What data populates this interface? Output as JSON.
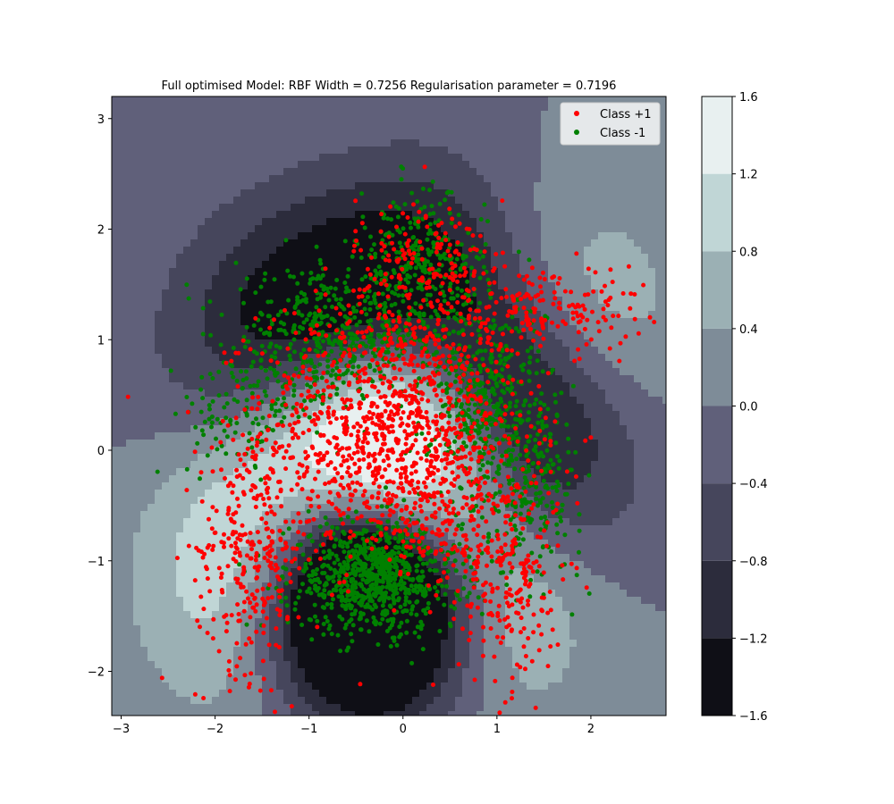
{
  "chart_data": {
    "type": "scatter",
    "title": "Full optimised Model: RBF Width = 0.7256  Regularisation parameter = 0.7196",
    "xlabel": "",
    "ylabel": "",
    "xlim": [
      -3.1,
      2.8
    ],
    "ylim": [
      -2.4,
      3.2
    ],
    "x_ticks": [
      -3,
      -2,
      -1,
      0,
      1,
      2
    ],
    "y_ticks": [
      -2,
      -1,
      0,
      1,
      2,
      3
    ],
    "legend": {
      "placement": "top-right",
      "entries": [
        "Class +1",
        "Class -1"
      ]
    },
    "colorbar": {
      "ticks": [
        -1.6,
        -1.2,
        -0.8,
        -0.4,
        0.0,
        0.4,
        0.8,
        1.2,
        1.6
      ],
      "tick_labels": [
        "−1.6",
        "−1.2",
        "−0.8",
        "−0.4",
        "0.0",
        "0.4",
        "0.8",
        "1.2",
        "1.6"
      ],
      "levels": [
        -1.6,
        -1.2,
        -0.8,
        -0.4,
        0.0,
        0.4,
        0.8,
        1.2,
        1.6
      ],
      "colors": [
        "#0f0f16",
        "#2c2c3c",
        "#46465c",
        "#60607a",
        "#7e8c98",
        "#9bb0b4",
        "#c0d6d6",
        "#e8f0f0"
      ]
    },
    "decision_surface": {
      "kind": "rbf_contour",
      "level_colors": [
        "#0f0f16",
        "#2c2c3c",
        "#46465c",
        "#60607a",
        "#7e8c98",
        "#9bb0b4",
        "#c0d6d6",
        "#e8f0f0"
      ]
    },
    "series": [
      {
        "name": "Class +1",
        "color": "#ff0000",
        "clusters": [
          {
            "cx": -0.1,
            "cy": 0.2,
            "sx": 0.7,
            "sy": 0.6,
            "n": 1100
          },
          {
            "cx": -1.6,
            "cy": -0.9,
            "sx": 0.3,
            "sy": 0.55,
            "n": 280
          },
          {
            "cx": 1.15,
            "cy": -1.2,
            "sx": 0.28,
            "sy": 0.5,
            "n": 200
          },
          {
            "cx": 1.5,
            "cy": 1.3,
            "sx": 0.55,
            "sy": 0.2,
            "n": 180
          },
          {
            "cx": 0.2,
            "cy": 1.7,
            "sx": 0.35,
            "sy": 0.3,
            "n": 150
          },
          {
            "cx": 0.6,
            "cy": -0.6,
            "sx": 0.4,
            "sy": 0.35,
            "n": 120
          }
        ]
      },
      {
        "name": "Class -1",
        "color": "#008000",
        "clusters": [
          {
            "cx": -0.3,
            "cy": -1.15,
            "sx": 0.45,
            "sy": 0.25,
            "n": 800
          },
          {
            "cx": -0.8,
            "cy": 1.0,
            "sx": 0.5,
            "sy": 0.3,
            "n": 450
          },
          {
            "cx": 0.9,
            "cy": 0.4,
            "sx": 0.3,
            "sy": 0.5,
            "n": 450
          },
          {
            "cx": 0.2,
            "cy": 1.6,
            "sx": 0.35,
            "sy": 0.35,
            "n": 350
          },
          {
            "cx": -1.7,
            "cy": 0.3,
            "sx": 0.35,
            "sy": 0.25,
            "n": 100
          },
          {
            "cx": 1.4,
            "cy": -0.3,
            "sx": 0.25,
            "sy": 0.4,
            "n": 180
          }
        ]
      }
    ]
  }
}
